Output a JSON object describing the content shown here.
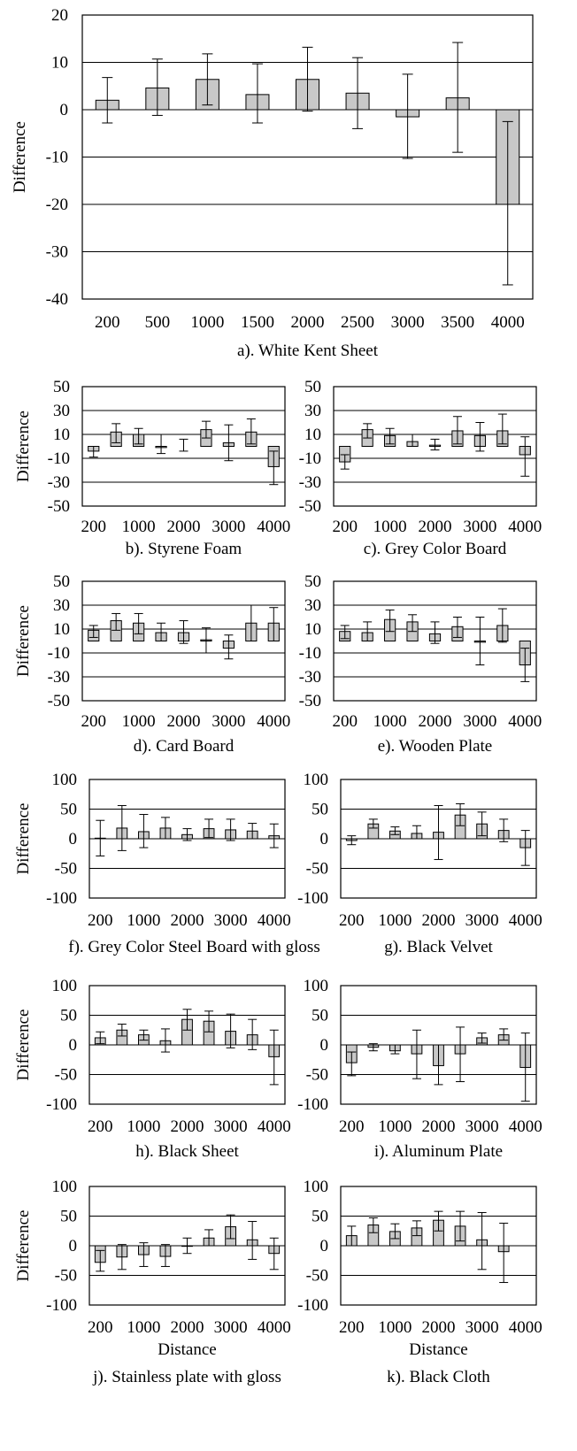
{
  "chart_data": [
    {
      "type": "bar",
      "panel": "a",
      "caption": "a). White Kent Sheet",
      "ylabel": "Difference",
      "xlabel": "",
      "categories": [
        "200",
        "500",
        "1000",
        "1500",
        "2000",
        "2500",
        "3000",
        "3500",
        "4000"
      ],
      "x_tick_labels": [
        "200",
        "500",
        "1000",
        "1500",
        "2000",
        "2500",
        "3000",
        "3500",
        "4000"
      ],
      "values": [
        2,
        4.6,
        6.4,
        3.2,
        6.4,
        3.5,
        -1.5,
        2.5,
        -20
      ],
      "error_low": [
        -2.8,
        -1.2,
        1,
        -2.8,
        -0.3,
        -4,
        -10.3,
        -9,
        -37
      ],
      "error_high": [
        6.8,
        10.7,
        11.8,
        9.7,
        13.2,
        11,
        7.5,
        14.2,
        -2.5
      ],
      "ylim": [
        -40,
        20
      ],
      "yticks": [
        20,
        10,
        0,
        -10,
        -20,
        -30,
        -40
      ],
      "gridlines": [
        10,
        0,
        -10,
        -20,
        -30
      ],
      "bar_color": "#c8c8c8"
    },
    {
      "type": "bar",
      "panel": "b",
      "caption": "b). Styrene Foam",
      "ylabel": "Difference",
      "xlabel": "",
      "categories": [
        "200",
        "500",
        "1000",
        "1500",
        "2000",
        "2500",
        "3000",
        "3500",
        "4000"
      ],
      "x_tick_labels": [
        "200",
        "",
        "1000",
        "",
        "2000",
        "",
        "3000",
        "",
        "4000"
      ],
      "values": [
        -4,
        12,
        10,
        -1,
        0,
        14,
        3,
        12,
        -17
      ],
      "error_low": [
        -9,
        3,
        2,
        -6,
        -4,
        7,
        -12,
        2,
        -32
      ],
      "error_high": [
        0,
        19,
        15,
        10,
        6,
        21,
        18,
        23,
        -4
      ],
      "ylim": [
        -50,
        50
      ],
      "yticks": [
        50,
        30,
        10,
        -10,
        -30,
        -50
      ],
      "gridlines": [
        30,
        10,
        -10,
        -30
      ],
      "bar_color": "#c8c8c8"
    },
    {
      "type": "bar",
      "panel": "c",
      "caption": "c). Grey Color Board",
      "ylabel": "",
      "xlabel": "",
      "categories": [
        "200",
        "500",
        "1000",
        "1500",
        "2000",
        "2500",
        "3000",
        "3500",
        "4000"
      ],
      "x_tick_labels": [
        "200",
        "",
        "1000",
        "",
        "2000",
        "",
        "3000",
        "",
        "4000"
      ],
      "values": [
        -13,
        14,
        9,
        4,
        1,
        13,
        9,
        13,
        -7
      ],
      "error_low": [
        -19,
        7,
        2,
        0,
        -3,
        2,
        -4,
        2,
        -25
      ],
      "error_high": [
        -7,
        19,
        15,
        10,
        6,
        25,
        20,
        27,
        8
      ],
      "ylim": [
        -50,
        50
      ],
      "yticks": [
        50,
        30,
        10,
        -10,
        -30,
        -50
      ],
      "gridlines": [
        30,
        10,
        -10,
        -30
      ],
      "bar_color": "#c8c8c8"
    },
    {
      "type": "bar",
      "panel": "d",
      "caption": "d). Card Board",
      "ylabel": "Difference",
      "xlabel": "",
      "categories": [
        "200",
        "500",
        "1000",
        "1500",
        "2000",
        "2500",
        "3000",
        "3500",
        "4000"
      ],
      "x_tick_labels": [
        "200",
        "",
        "1000",
        "",
        "2000",
        "",
        "3000",
        "",
        "4000"
      ],
      "values": [
        9,
        17,
        15,
        7,
        7,
        1,
        -6,
        15,
        15
      ],
      "error_low": [
        3,
        9,
        6,
        0,
        -2,
        -10,
        -15,
        0,
        0
      ],
      "error_high": [
        13,
        23,
        23,
        15,
        17,
        11,
        5,
        30,
        28
      ],
      "ylim": [
        -50,
        50
      ],
      "yticks": [
        50,
        30,
        10,
        -10,
        -30,
        -50
      ],
      "gridlines": [
        30,
        10,
        -10,
        -30
      ],
      "bar_color": "#c8c8c8"
    },
    {
      "type": "bar",
      "panel": "e",
      "caption": "e). Wooden Plate",
      "ylabel": "",
      "xlabel": "",
      "categories": [
        "200",
        "500",
        "1000",
        "1500",
        "2000",
        "2500",
        "3000",
        "3500",
        "4000"
      ],
      "x_tick_labels": [
        "200",
        "",
        "1000",
        "",
        "2000",
        "",
        "3000",
        "",
        "4000"
      ],
      "values": [
        8,
        7,
        18,
        16,
        6,
        12,
        -1,
        13,
        -20
      ],
      "error_low": [
        2,
        0,
        8,
        8,
        -2,
        3,
        -20,
        -1,
        -34
      ],
      "error_high": [
        13,
        16,
        26,
        22,
        16,
        20,
        20,
        27,
        -6
      ],
      "ylim": [
        -50,
        50
      ],
      "yticks": [
        50,
        30,
        10,
        -10,
        -30,
        -50
      ],
      "gridlines": [
        30,
        10,
        -10,
        -30
      ],
      "bar_color": "#c8c8c8"
    },
    {
      "type": "bar",
      "panel": "f",
      "caption": "f). Grey Color Steel Board with gloss",
      "ylabel": "Difference",
      "xlabel": "",
      "categories": [
        "200",
        "500",
        "1000",
        "1500",
        "2000",
        "2500",
        "3000",
        "3500",
        "4000"
      ],
      "x_tick_labels": [
        "200",
        "",
        "1000",
        "",
        "2000",
        "",
        "3000",
        "",
        "4000"
      ],
      "values": [
        1,
        18,
        12,
        18,
        7,
        17,
        15,
        13,
        5
      ],
      "error_low": [
        -29,
        -20,
        -15,
        0,
        -3,
        2,
        -3,
        0,
        -15
      ],
      "error_high": [
        31,
        56,
        41,
        36,
        17,
        33,
        33,
        26,
        25
      ],
      "ylim": [
        -100,
        100
      ],
      "yticks": [
        100,
        50,
        0,
        -50,
        -100
      ],
      "gridlines": [
        50,
        0,
        -50
      ],
      "bar_color": "#c8c8c8"
    },
    {
      "type": "bar",
      "panel": "g",
      "caption": "g). Black Velvet",
      "ylabel": "",
      "xlabel": "",
      "categories": [
        "200",
        "500",
        "1000",
        "1500",
        "2000",
        "2500",
        "3000",
        "3500",
        "4000"
      ],
      "x_tick_labels": [
        "200",
        "",
        "1000",
        "",
        "2000",
        "",
        "3000",
        "",
        "4000"
      ],
      "values": [
        -3,
        25,
        13,
        9,
        11,
        40,
        25,
        14,
        -15
      ],
      "error_low": [
        -10,
        18,
        7,
        0,
        -35,
        22,
        5,
        -5,
        -45
      ],
      "error_high": [
        5,
        33,
        20,
        22,
        56,
        59,
        45,
        33,
        14
      ],
      "ylim": [
        -100,
        100
      ],
      "yticks": [
        100,
        50,
        0,
        -50,
        -100
      ],
      "gridlines": [
        50,
        0,
        -50
      ],
      "bar_color": "#c8c8c8"
    },
    {
      "type": "bar",
      "panel": "h",
      "caption": "h). Black Sheet",
      "ylabel": "Difference",
      "xlabel": "",
      "categories": [
        "200",
        "500",
        "1000",
        "1500",
        "2000",
        "2500",
        "3000",
        "3500",
        "4000"
      ],
      "x_tick_labels": [
        "200",
        "",
        "1000",
        "",
        "2000",
        "",
        "3000",
        "",
        "4000"
      ],
      "values": [
        12,
        25,
        17,
        7,
        43,
        40,
        23,
        17,
        -20
      ],
      "error_low": [
        2,
        15,
        8,
        -12,
        25,
        22,
        -5,
        -8,
        -67
      ],
      "error_high": [
        22,
        35,
        25,
        27,
        60,
        57,
        52,
        43,
        25
      ],
      "ylim": [
        -100,
        100
      ],
      "yticks": [
        100,
        50,
        0,
        -50,
        -100
      ],
      "gridlines": [
        50,
        0,
        -50
      ],
      "bar_color": "#c8c8c8"
    },
    {
      "type": "bar",
      "panel": "i",
      "caption": "i). Aluminum Plate",
      "ylabel": "",
      "xlabel": "",
      "categories": [
        "200",
        "500",
        "1000",
        "1500",
        "2000",
        "2500",
        "3000",
        "3500",
        "4000"
      ],
      "x_tick_labels": [
        "200",
        "",
        "1000",
        "",
        "2000",
        "",
        "3000",
        "",
        "4000"
      ],
      "values": [
        -30,
        -4,
        -10,
        -15,
        -35,
        -15,
        12,
        17,
        -38
      ],
      "error_low": [
        -52,
        -10,
        -15,
        -57,
        -67,
        -62,
        3,
        8,
        -95
      ],
      "error_high": [
        -12,
        2,
        0,
        25,
        0,
        30,
        20,
        27,
        20
      ],
      "ylim": [
        -100,
        100
      ],
      "yticks": [
        100,
        50,
        0,
        -50,
        -100
      ],
      "gridlines": [
        50,
        0,
        -50
      ],
      "bar_color": "#c8c8c8"
    },
    {
      "type": "bar",
      "panel": "j",
      "caption": "j). Stainless plate with gloss",
      "ylabel": "Difference",
      "xlabel": "Distance",
      "categories": [
        "200",
        "500",
        "1000",
        "1500",
        "2000",
        "2500",
        "3000",
        "3500",
        "4000"
      ],
      "x_tick_labels": [
        "200",
        "",
        "1000",
        "",
        "2000",
        "",
        "3000",
        "",
        "4000"
      ],
      "values": [
        -28,
        -19,
        -15,
        -18,
        -1,
        13,
        32,
        10,
        -13
      ],
      "error_low": [
        -43,
        -40,
        -35,
        -35,
        -13,
        0,
        12,
        -23,
        -40
      ],
      "error_high": [
        -8,
        2,
        5,
        2,
        13,
        27,
        52,
        41,
        13
      ],
      "ylim": [
        -100,
        100
      ],
      "yticks": [
        100,
        50,
        0,
        -50,
        -100
      ],
      "gridlines": [
        50,
        0,
        -50
      ],
      "bar_color": "#c8c8c8"
    },
    {
      "type": "bar",
      "panel": "k",
      "caption": "k). Black Cloth",
      "ylabel": "",
      "xlabel": "Distance",
      "categories": [
        "200",
        "500",
        "1000",
        "1500",
        "2000",
        "2500",
        "3000",
        "3500",
        "4000"
      ],
      "x_tick_labels": [
        "200",
        "",
        "1000",
        "",
        "2000",
        "",
        "3000",
        "",
        "4000"
      ],
      "values": [
        17,
        35,
        24,
        30,
        43,
        33,
        10,
        -10,
        0
      ],
      "error_low": [
        0,
        22,
        12,
        17,
        25,
        8,
        -40,
        -62,
        0
      ],
      "error_high": [
        33,
        47,
        37,
        42,
        58,
        58,
        56,
        38,
        0
      ],
      "ylim": [
        -100,
        100
      ],
      "yticks": [
        100,
        50,
        0,
        -50,
        -100
      ],
      "gridlines": [
        50,
        0,
        -50
      ],
      "bar_color": "#c8c8c8"
    }
  ]
}
